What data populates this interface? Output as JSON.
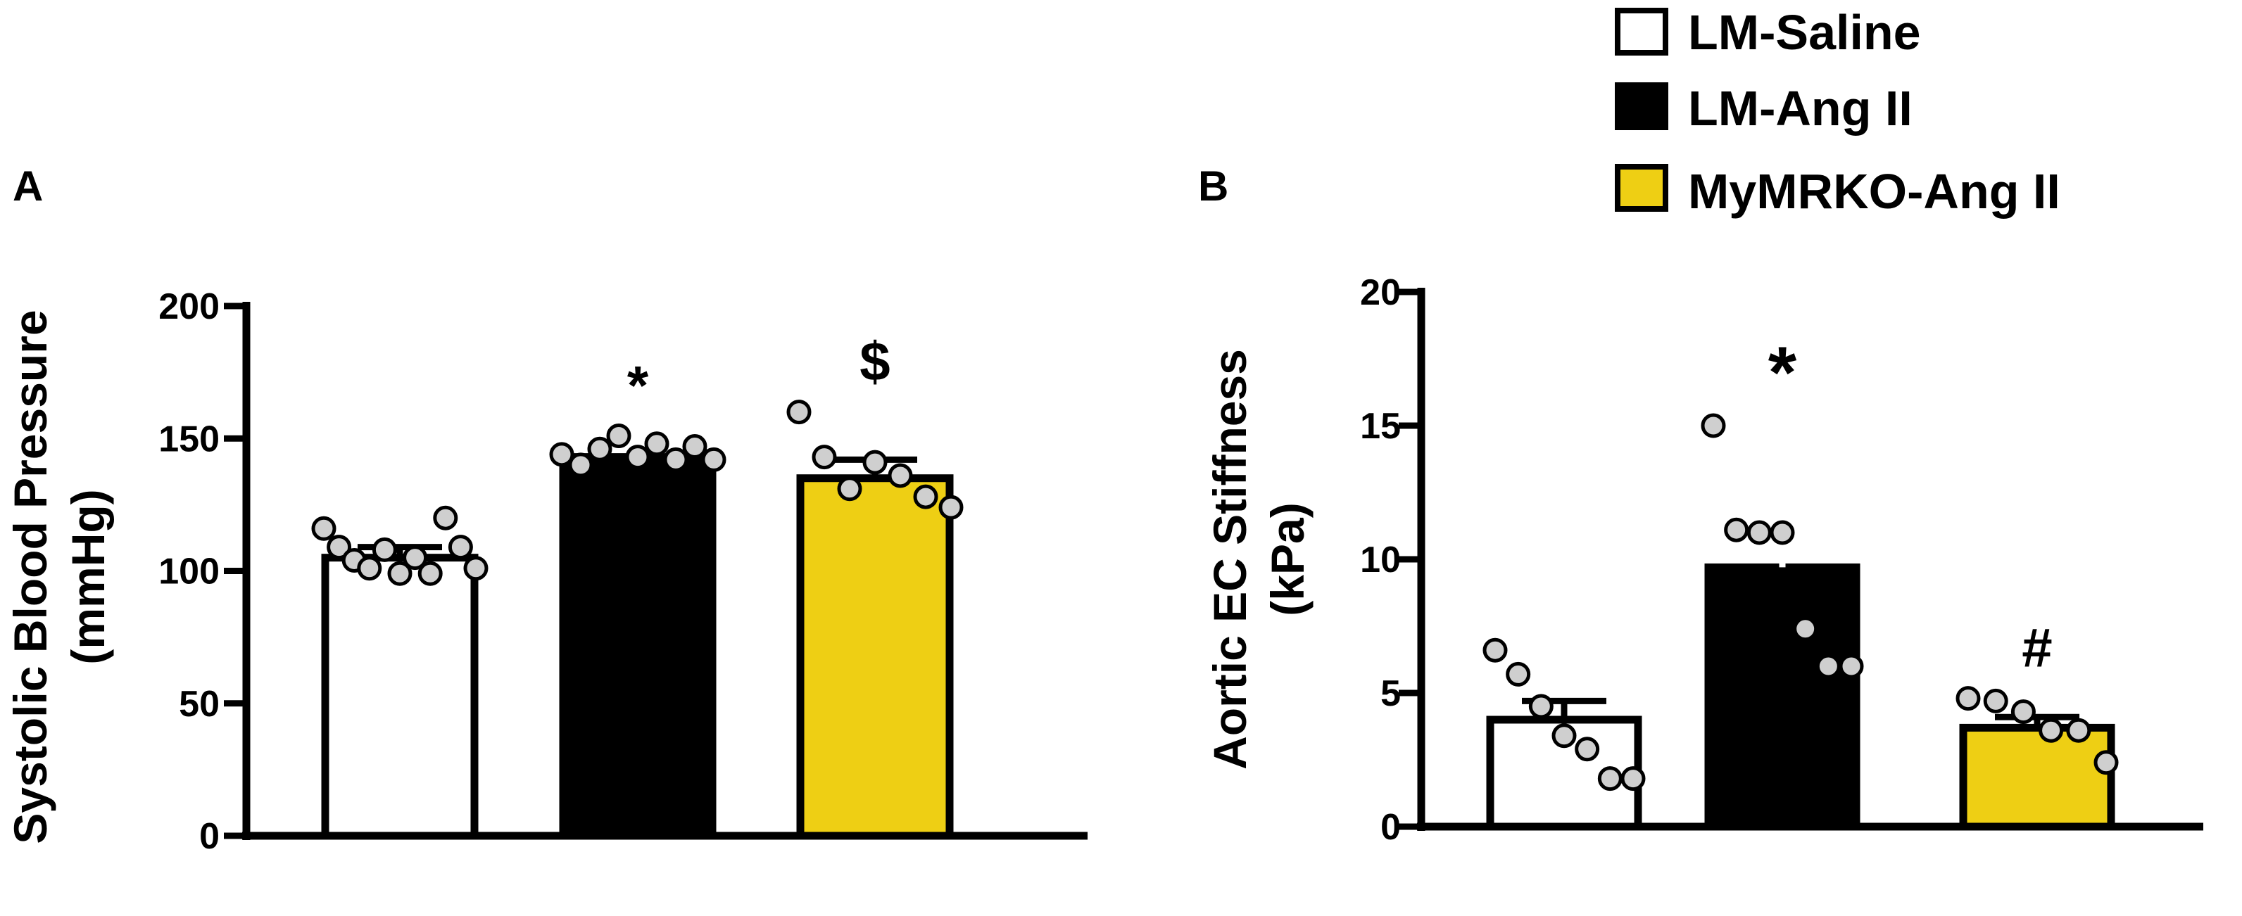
{
  "legend": {
    "entries": [
      {
        "label": "LM-Saline",
        "color": "#ffffff"
      },
      {
        "label": "LM-Ang II",
        "color": "#000000"
      },
      {
        "label": "MyMRKO-Ang II",
        "color": "#eecf14"
      }
    ]
  },
  "colors": {
    "axis": "#000000",
    "dot_fill": "#cfcfcf",
    "dot_stroke": "#000000"
  },
  "chart_data": [
    {
      "panel": "A",
      "type": "bar",
      "ylabel": [
        "Systolic Blood Pressure",
        "(mmHg)"
      ],
      "ylim": [
        0,
        200
      ],
      "yticks": [
        0,
        50,
        100,
        150,
        200
      ],
      "categories": [
        "LM-Saline",
        "LM-Ang II",
        "MyMRKO-Ang II"
      ],
      "values": [
        105,
        143,
        135
      ],
      "sem": [
        4,
        3,
        7
      ],
      "colors": [
        "#ffffff",
        "#000000",
        "#eecf14"
      ],
      "significance": [
        "",
        "*",
        "$"
      ],
      "points": [
        [
          116,
          109,
          104,
          101,
          108,
          99,
          105,
          99,
          120,
          109,
          101
        ],
        [
          144,
          140,
          146,
          151,
          143,
          148,
          142,
          147,
          142
        ],
        [
          160,
          143,
          131,
          141,
          136,
          128,
          124
        ]
      ]
    },
    {
      "panel": "B",
      "type": "bar",
      "ylabel": [
        "Aortic EC Stiffness",
        "(kPa)"
      ],
      "ylim": [
        0,
        20
      ],
      "yticks": [
        0,
        5,
        10,
        15,
        20
      ],
      "categories": [
        "LM-Saline",
        "LM-Ang II",
        "MyMRKO-Ang II"
      ],
      "values": [
        4.0,
        9.7,
        3.7
      ],
      "sem": [
        0.7,
        1.3,
        0.4
      ],
      "colors": [
        "#ffffff",
        "#000000",
        "#eecf14"
      ],
      "significance": [
        "",
        "*",
        "#"
      ],
      "points": [
        [
          6.6,
          5.7,
          4.5,
          3.4,
          2.9,
          1.8,
          1.8
        ],
        [
          15.0,
          11.1,
          11.0,
          11.0,
          7.4,
          6.0,
          6.0
        ],
        [
          4.8,
          4.7,
          4.3,
          3.6,
          3.6,
          2.4
        ]
      ]
    }
  ]
}
